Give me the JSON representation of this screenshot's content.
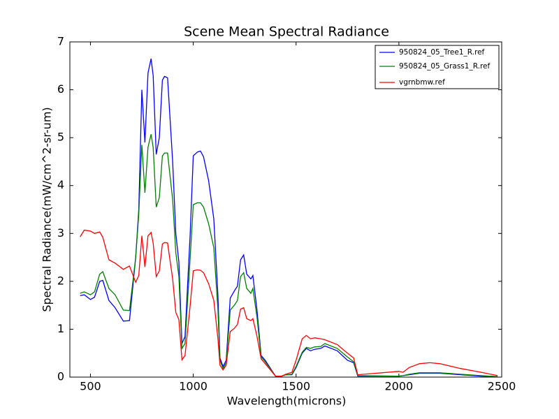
{
  "chart_data": {
    "type": "line",
    "title": "Scene Mean Spectral Radiance",
    "x_label": "Wavelength(microns)",
    "y_label": "Spectral Radiance(mW/cm^2-sr-um)",
    "x": [
      450,
      470,
      500,
      520,
      545,
      560,
      590,
      620,
      660,
      690,
      720,
      735,
      750,
      765,
      780,
      795,
      805,
      820,
      835,
      850,
      860,
      875,
      900,
      915,
      930,
      945,
      960,
      985,
      1000,
      1020,
      1035,
      1050,
      1075,
      1100,
      1120,
      1130,
      1145,
      1160,
      1180,
      1200,
      1215,
      1230,
      1245,
      1260,
      1280,
      1290,
      1310,
      1330,
      1350,
      1400,
      1430,
      1450,
      1480,
      1500,
      1530,
      1550,
      1570,
      1590,
      1620,
      1640,
      1700,
      1750,
      1780,
      1800,
      2000,
      2020,
      2050,
      2100,
      2150,
      2200,
      2300,
      2400,
      2480
    ],
    "series": [
      {
        "name": "950824_05_Tree1_R.ref",
        "color": "#0000ff",
        "values": [
          1.7,
          1.72,
          1.62,
          1.67,
          2.0,
          2.02,
          1.6,
          1.45,
          1.17,
          1.18,
          2.5,
          3.5,
          6.0,
          4.9,
          6.35,
          6.65,
          6.3,
          4.65,
          5.0,
          6.2,
          6.28,
          6.25,
          4.5,
          3.0,
          2.4,
          0.7,
          0.85,
          3.0,
          4.62,
          4.7,
          4.72,
          4.6,
          4.1,
          3.3,
          1.7,
          0.4,
          0.22,
          0.35,
          1.65,
          1.8,
          1.9,
          2.45,
          2.55,
          2.15,
          2.05,
          2.12,
          1.4,
          0.45,
          0.35,
          0.02,
          0.02,
          0.05,
          0.05,
          0.2,
          0.5,
          0.6,
          0.55,
          0.58,
          0.6,
          0.65,
          0.55,
          0.35,
          0.3,
          0.02,
          0.02,
          0.03,
          0.05,
          0.08,
          0.08,
          0.08,
          0.05,
          0.02,
          0.01
        ]
      },
      {
        "name": "950824_05_Grass1_R.ref",
        "color": "#008000",
        "values": [
          1.75,
          1.78,
          1.72,
          1.78,
          2.15,
          2.2,
          1.85,
          1.72,
          1.4,
          1.39,
          2.5,
          3.4,
          4.85,
          3.85,
          4.8,
          5.07,
          4.8,
          3.55,
          3.75,
          4.62,
          4.68,
          4.68,
          3.7,
          2.6,
          2.1,
          0.6,
          0.7,
          2.5,
          3.6,
          3.64,
          3.64,
          3.55,
          3.2,
          2.7,
          1.4,
          0.35,
          0.18,
          0.3,
          1.4,
          1.5,
          1.6,
          2.1,
          2.18,
          1.85,
          1.75,
          1.85,
          1.25,
          0.42,
          0.32,
          0.02,
          0.02,
          0.05,
          0.06,
          0.22,
          0.52,
          0.62,
          0.6,
          0.63,
          0.64,
          0.7,
          0.6,
          0.42,
          0.32,
          0.03,
          0.02,
          0.03,
          0.06,
          0.09,
          0.09,
          0.09,
          0.06,
          0.03,
          0.01
        ]
      },
      {
        "name": "vgrnbmw.ref",
        "color": "#ff0000",
        "values": [
          2.93,
          3.07,
          3.05,
          3.0,
          3.03,
          2.92,
          2.45,
          2.38,
          2.25,
          2.32,
          1.98,
          2.12,
          2.95,
          2.3,
          2.95,
          3.02,
          2.8,
          2.1,
          2.22,
          2.78,
          2.81,
          2.8,
          2.05,
          1.35,
          1.2,
          0.36,
          0.45,
          1.5,
          2.22,
          2.24,
          2.23,
          2.18,
          1.95,
          1.6,
          0.8,
          0.25,
          0.15,
          0.25,
          0.95,
          1.02,
          1.1,
          1.42,
          1.45,
          1.22,
          1.18,
          1.22,
          0.85,
          0.38,
          0.28,
          0.02,
          0.02,
          0.06,
          0.1,
          0.35,
          0.8,
          0.87,
          0.8,
          0.82,
          0.8,
          0.78,
          0.68,
          0.5,
          0.4,
          0.05,
          0.12,
          0.1,
          0.2,
          0.28,
          0.3,
          0.28,
          0.18,
          0.1,
          0.03
        ]
      }
    ],
    "xlim": [
      400,
      2500
    ],
    "xticks": [
      500,
      1000,
      1500,
      2000,
      2500
    ],
    "ylim": [
      0,
      7
    ],
    "yticks": [
      0,
      1,
      2,
      3,
      4,
      5,
      6,
      7
    ],
    "grid": false,
    "legend": "upper right"
  }
}
